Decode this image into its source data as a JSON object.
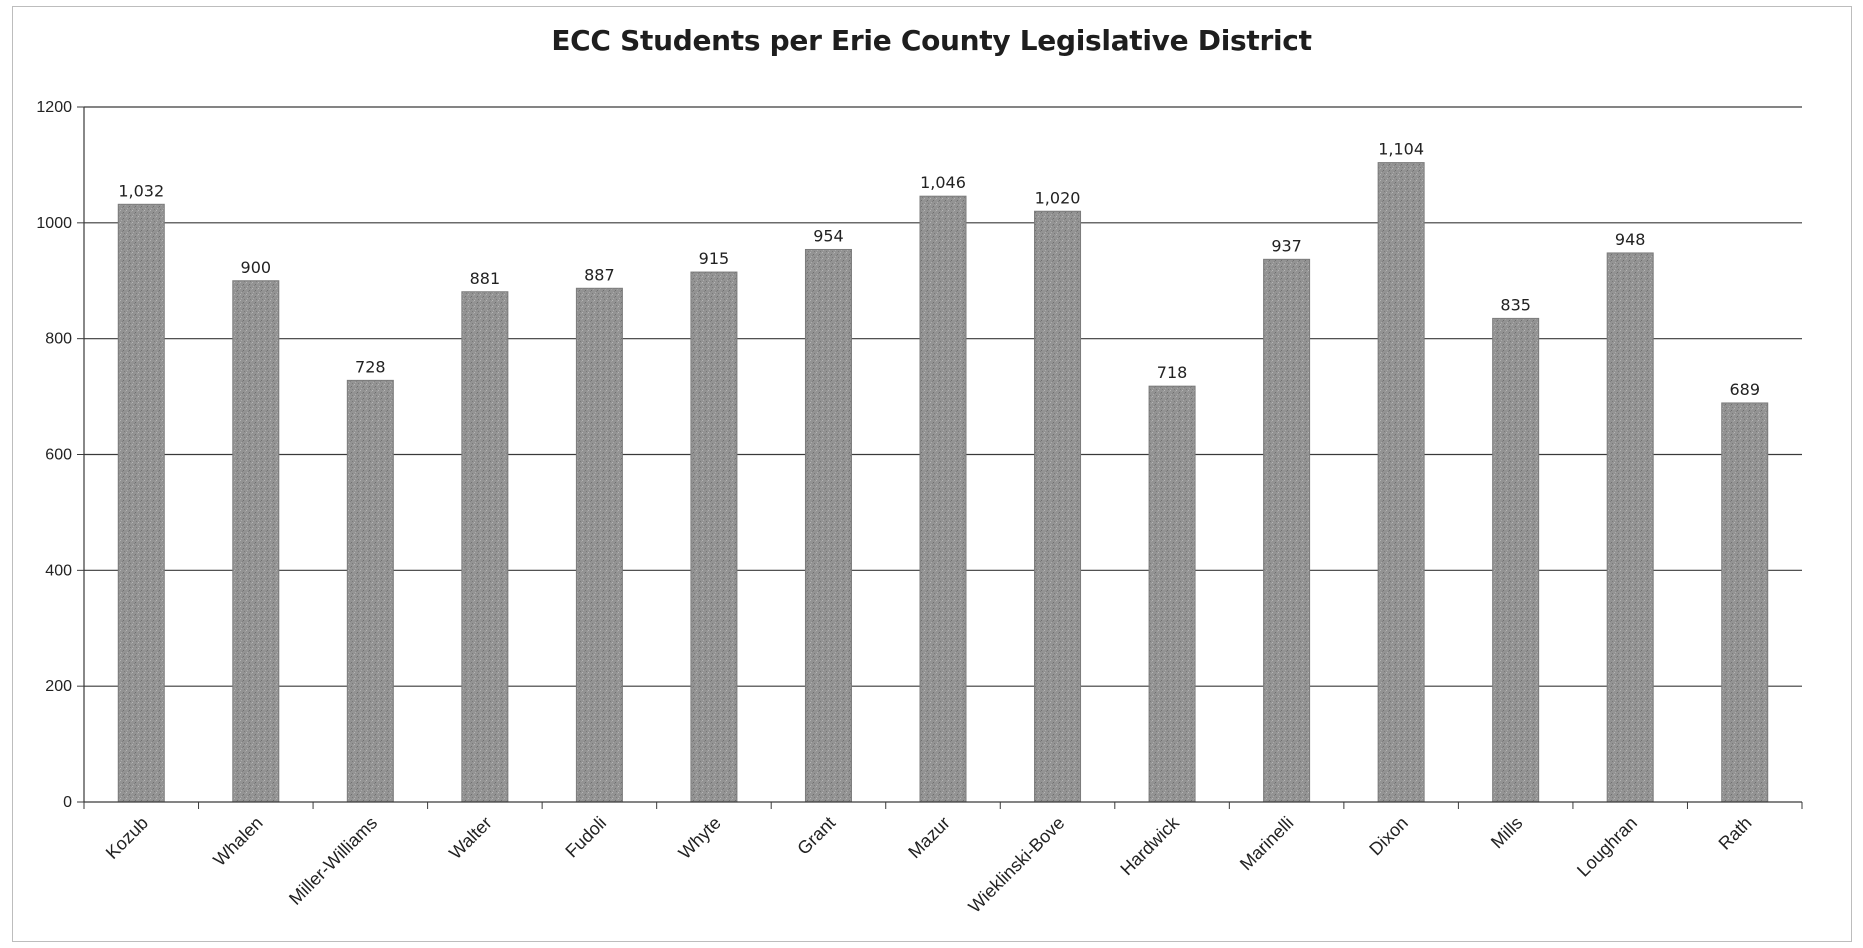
{
  "chart_data": {
    "type": "bar",
    "title": "ECC Students per Erie County Legislative District",
    "xlabel": "",
    "ylabel": "",
    "ylim": [
      0,
      1200
    ],
    "yticks": [
      0,
      200,
      400,
      600,
      800,
      1000,
      1200
    ],
    "grid": true,
    "legend": "none",
    "bar_color": "#8f8f8f",
    "categories": [
      "Kozub",
      "Whalen",
      "Miller-Williams",
      "Walter",
      "Fudoli",
      "Whyte",
      "Grant",
      "Mazur",
      "Wieklinski-Bove",
      "Hardwick",
      "Marinelli",
      "Dixon",
      "Mills",
      "Loughran",
      "Rath"
    ],
    "values": [
      1032,
      900,
      728,
      881,
      887,
      915,
      954,
      1046,
      1020,
      718,
      937,
      1104,
      835,
      948,
      689
    ],
    "value_labels": [
      "1,032",
      "900",
      "728",
      "881",
      "887",
      "915",
      "954",
      "1,046",
      "1,020",
      "718",
      "937",
      "1,104",
      "835",
      "948",
      "689"
    ]
  }
}
